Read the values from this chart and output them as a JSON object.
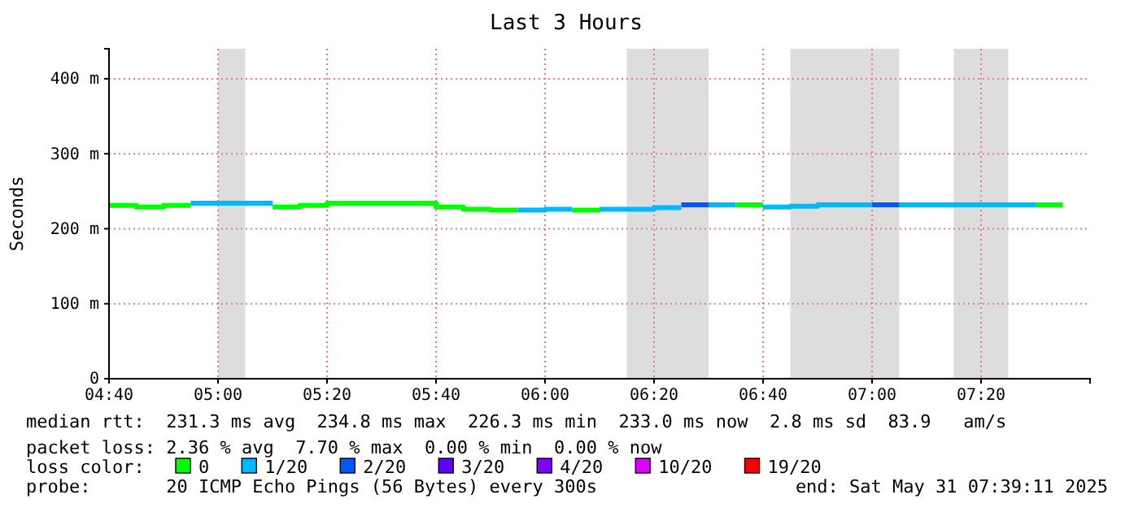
{
  "chart_data": {
    "type": "step",
    "title": "Last 3 Hours",
    "ylabel": "Seconds",
    "legend_title": "loss color:",
    "legend": "bottom",
    "grid": true,
    "line_style": "solid",
    "xlim": [
      "2025-05-31T04:40",
      "2025-05-31T07:40"
    ],
    "xticks": [
      {
        "value": "2025-05-31T04:40",
        "label": "04:40"
      },
      {
        "value": "2025-05-31T05:00",
        "label": "05:00"
      },
      {
        "value": "2025-05-31T05:20",
        "label": "05:20"
      },
      {
        "value": "2025-05-31T05:40",
        "label": "05:40"
      },
      {
        "value": "2025-05-31T06:00",
        "label": "06:00"
      },
      {
        "value": "2025-05-31T06:20",
        "label": "06:20"
      },
      {
        "value": "2025-05-31T06:40",
        "label": "06:40"
      },
      {
        "value": "2025-05-31T07:00",
        "label": "07:00"
      },
      {
        "value": "2025-05-31T07:20",
        "label": "07:20"
      }
    ],
    "ylim": [
      0,
      440
    ],
    "yticks": [
      0,
      {
        "value": 100,
        "label": "100 m"
      },
      {
        "value": 200,
        "label": "200 m"
      },
      {
        "value": 300,
        "label": "300 m"
      },
      {
        "value": 400,
        "label": "400 m"
      }
    ],
    "series": [
      {
        "name": "0",
        "color": "#00ff00",
        "x": [
          "2025-05-31T04:40",
          "2025-05-31T04:45",
          "2025-05-31T04:50",
          "2025-05-31T04:55"
        ],
        "values": [
          231,
          229,
          231,
          231
        ]
      },
      {
        "name": "1/20",
        "color": "#00b8ff",
        "x": [
          "2025-05-31T04:55",
          "2025-05-31T05:00",
          "2025-05-31T05:05",
          "2025-05-31T05:10"
        ],
        "values": [
          234,
          234,
          234,
          234
        ]
      },
      {
        "name": "2/20",
        "color": "#0059ff",
        "x": [
          "2025-05-31T06:25",
          "2025-05-31T06:30"
        ],
        "values": [
          232,
          232
        ]
      },
      {
        "name": "3/20",
        "color": "#5e00ff"
      },
      {
        "name": "4/20",
        "color": "#7e00ff"
      },
      {
        "name": "10/20",
        "color": "#dd00ff"
      },
      {
        "name": "19/20",
        "color": "#ff0000"
      },
      {
        "color": "#00ff00",
        "x": [
          "2025-05-31T05:10",
          "2025-05-31T05:15",
          "2025-05-31T05:20",
          "2025-05-31T05:25",
          "2025-05-31T05:30",
          "2025-05-31T05:35",
          "2025-05-31T05:40",
          "2025-05-31T05:45",
          "2025-05-31T05:50",
          "2025-05-31T05:55"
        ],
        "values": [
          229,
          231,
          234,
          234,
          234,
          234,
          229,
          226,
          225,
          225
        ]
      },
      {
        "color": "#00ff00",
        "x": [
          "2025-05-31T06:05",
          "2025-05-31T06:10"
        ],
        "values": [
          225,
          225
        ]
      },
      {
        "color": "#00ff00",
        "x": [
          "2025-05-31T06:35",
          "2025-05-31T06:40"
        ],
        "values": [
          232,
          232
        ]
      },
      {
        "color": "#00ff00",
        "x": [
          "2025-05-31T07:30",
          "2025-05-31T07:35"
        ],
        "values": [
          232,
          232
        ]
      },
      {
        "color": "#00b8ff",
        "x": [
          "2025-05-31T05:55",
          "2025-05-31T06:00",
          "2025-05-31T06:05"
        ],
        "values": [
          225,
          226,
          226
        ]
      },
      {
        "color": "#00b8ff",
        "x": [
          "2025-05-31T06:10",
          "2025-05-31T06:15",
          "2025-05-31T06:20",
          "2025-05-31T06:25"
        ],
        "values": [
          226,
          226,
          228,
          228
        ]
      },
      {
        "color": "#00b8ff",
        "x": [
          "2025-05-31T06:30",
          "2025-05-31T06:35"
        ],
        "values": [
          232,
          232
        ]
      },
      {
        "color": "#00b8ff",
        "x": [
          "2025-05-31T06:40",
          "2025-05-31T06:45",
          "2025-05-31T06:50",
          "2025-05-31T06:55",
          "2025-05-31T07:00"
        ],
        "values": [
          229,
          230,
          232,
          232,
          232
        ]
      },
      {
        "color": "#00b8ff",
        "x": [
          "2025-05-31T07:05",
          "2025-05-31T07:10",
          "2025-05-31T07:15",
          "2025-05-31T07:20",
          "2025-05-31T07:25",
          "2025-05-31T07:30"
        ],
        "values": [
          232,
          232,
          232,
          232,
          232,
          232
        ]
      },
      {
        "color": "#0059ff",
        "x": [
          "2025-05-31T07:00",
          "2025-05-31T07:05"
        ],
        "values": [
          232,
          232
        ]
      }
    ],
    "bands": [
      {
        "axis": "x",
        "from": "2025-05-31T05:00",
        "to": "2025-05-31T05:05",
        "color": "#dddddd"
      },
      {
        "axis": "x",
        "from": "2025-05-31T06:15",
        "to": "2025-05-31T06:30",
        "color": "#dddddd"
      },
      {
        "axis": "x",
        "from": "2025-05-31T06:45",
        "to": "2025-05-31T07:05",
        "color": "#dddddd"
      },
      {
        "axis": "x",
        "from": "2025-05-31T07:15",
        "to": "2025-05-31T07:25",
        "color": "#dddddd"
      }
    ],
    "annotations": [
      "median rtt:  231.3 ms avg  234.8 ms max  226.3 ms min  233.0 ms now  2.8 ms sd  83.9   am/s",
      "packet loss: 2.36 % avg  7.70 % max  0.00 % min  0.00 % now",
      "probe:       20 ICMP Echo Pings (56 Bytes) every 300s",
      "end: Sat May 31 07:39:11 2025"
    ]
  }
}
